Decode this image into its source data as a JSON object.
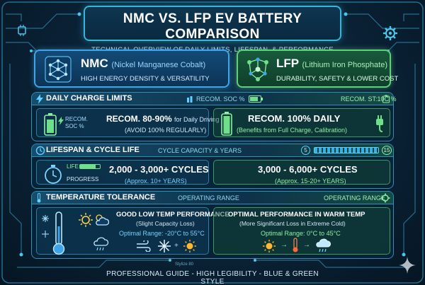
{
  "header": {
    "title": "NMC VS. LFP EV BATTERY COMPARISON",
    "subtitle": "TECHNICAL OVERVIEW OF DAILY LIMITS, LIFESPAN, & PERFORMANCE"
  },
  "nmc": {
    "name": "NMC",
    "full_name": "(Nickel Manganese Cobalt)",
    "tagline": "HIGH ENERGY DENSITY & VERSATILITY",
    "accent": "#3fa5e6"
  },
  "lfp": {
    "name": "LFP",
    "full_name": "(Lithium Iron Phosphate)",
    "tagline": "DURABILITY, SAFETY & LOWER COST",
    "accent": "#5fd07a"
  },
  "charge": {
    "title": "DAILY CHARGE LIMITS",
    "tag_left": "RECOM. SOC %",
    "tag_right": "RECOM. ST:10C %",
    "nmc_icon_label_1": "RECOM.",
    "nmc_icon_label_2": "SOC %",
    "nmc_headline": "RECOM. 80-90%",
    "nmc_headline_suffix": "for Daily Driving",
    "nmc_note": "(AVOID 100% REGULARLY)",
    "lfp_headline": "RECOM. 100% DAILY",
    "lfp_note": "(Benefits from Full Charge, Calibration)"
  },
  "lifespan": {
    "title": "LIFESPAN & CYCLE LIFE",
    "tag": "CYCLE CAPACITY & YEARS",
    "scale_min": "5",
    "scale_max": "15",
    "life_label": "LIFE",
    "progress_label": "PROGRESS",
    "nmc_cycles": "2,000 - 3,000+ CYCLES",
    "nmc_years": "(Approx. 10+ YEARS)",
    "lfp_cycles": "3,000 - 6,000+ CYCLES",
    "lfp_years": "(Approx. 15-20+ YEARS)"
  },
  "temperature": {
    "title": "TEMPERATURE TOLERANCE",
    "tag_left": "OPERATING RANGE",
    "tag_right": "OPERATING RANGE",
    "nmc_headline": "GOOD LOW TEMP PERFORMANCE",
    "nmc_note": "(Slight Capacity Loss)",
    "nmc_range": "Optimal Range: -20°C to 55°C",
    "lfp_headline": "OPTIMAL PERFORMANCE IN WARM TEMP",
    "lfp_note": "(More Significant Loss in Extreme Cold)",
    "lfp_range": "Optimal Range: 0°C to 45°C"
  },
  "footer": {
    "text": "PROFESSIONAL GUIDE - HIGH LEGIBILITY - BLUE & GREEN STYLE",
    "brand": "Stylize 80"
  }
}
